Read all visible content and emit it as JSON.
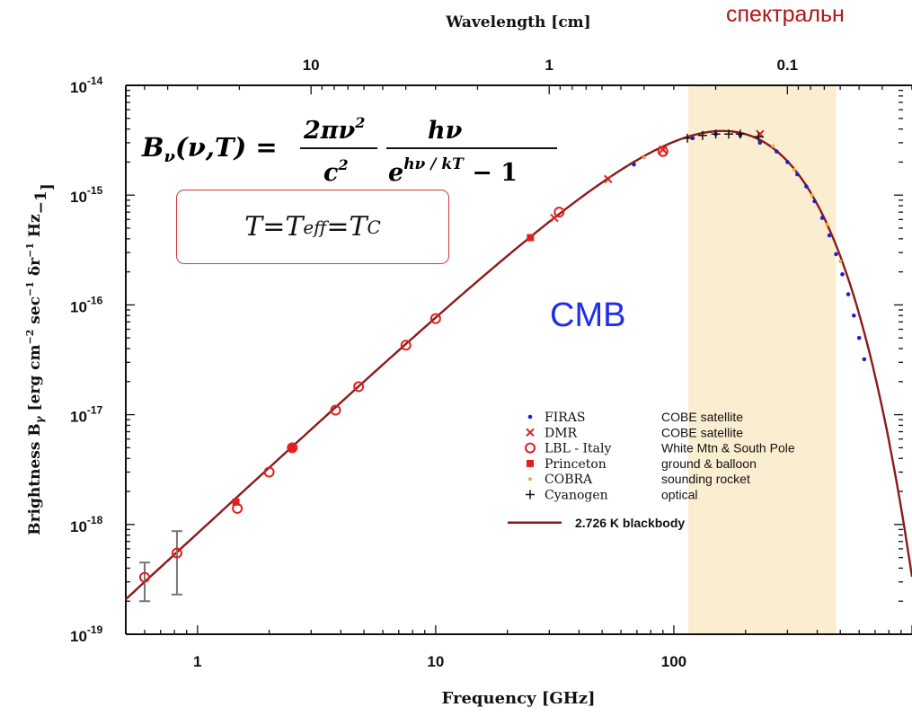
{
  "chart_data": {
    "type": "scatter",
    "x_scale": "log",
    "y_scale": "log",
    "xlabel": "Frequency  [GHz]",
    "ylabel": "Brightness B",
    "ylabel_subscript": "γ",
    "ylabel_units": "[erg cm",
    "ylabel_units_rest": [
      "−2",
      " sec",
      "−1",
      " δr",
      "−1",
      " Hz",
      "−1",
      "]"
    ],
    "top_axis_label": "Wavelength  [cm]",
    "xlim": [
      0.5,
      1000
    ],
    "ylim": [
      1e-19,
      1e-14
    ],
    "x_ticks": [
      {
        "value": 1,
        "label": "1"
      },
      {
        "value": 10,
        "label": "10"
      },
      {
        "value": 100,
        "label": "100"
      }
    ],
    "top_ticks": [
      {
        "value_cm": 10,
        "label": "10"
      },
      {
        "value_cm": 1,
        "label": "1"
      },
      {
        "value_cm": 0.1,
        "label": "0.1"
      }
    ],
    "y_ticks": [
      {
        "value": 1e-14,
        "base": "10",
        "exp": "-14"
      },
      {
        "value": 1e-15,
        "base": "10",
        "exp": "-15"
      },
      {
        "value": 1e-16,
        "base": "10",
        "exp": "-16"
      },
      {
        "value": 1e-17,
        "base": "10",
        "exp": "-17"
      },
      {
        "value": 1e-18,
        "base": "10",
        "exp": "-18"
      },
      {
        "value": 1e-19,
        "base": "10",
        "exp": "-19"
      }
    ],
    "highlight_band_ghz": [
      115,
      480
    ],
    "blackbody": {
      "temperature_K": 2.726,
      "label": "2.726 K  blackbody",
      "color": "#8b1a1a"
    },
    "series": [
      {
        "name": "FIRAS",
        "description": "COBE satellite",
        "marker": "dot",
        "color": "#2020d0",
        "x": [
          68,
          120,
          150,
          190,
          230,
          270,
          300,
          330,
          360,
          390,
          420,
          450,
          480,
          510,
          540,
          570,
          600,
          630
        ],
        "y": [
          1.9e-15,
          3.3e-15,
          3.6e-15,
          3.5e-15,
          3e-15,
          2.5e-15,
          2e-15,
          1.55e-15,
          1.2e-15,
          8.8e-16,
          6.2e-16,
          4.3e-16,
          2.9e-16,
          1.9e-16,
          1.25e-16,
          8e-17,
          5e-17,
          3.2e-17
        ]
      },
      {
        "name": "DMR",
        "description": "COBE satellite",
        "marker": "x",
        "color": "#e02020",
        "x": [
          31.5,
          53,
          90,
          230
        ],
        "y": [
          6.2e-16,
          1.4e-15,
          2.6e-15,
          3.6e-15
        ]
      },
      {
        "name": "LBL - Italy",
        "description": "White Mtn & South Pole",
        "marker": "circle",
        "color": "#e02020",
        "x": [
          0.6,
          0.82,
          1.47,
          2.0,
          2.5,
          3.8,
          4.75,
          7.5,
          10.0,
          33.0,
          90.0
        ],
        "y": [
          3.3e-19,
          5.5e-19,
          1.4e-18,
          3e-18,
          5e-18,
          1.1e-17,
          1.8e-17,
          4.3e-17,
          7.5e-17,
          7e-16,
          2.5e-15
        ],
        "err_low": [
          2e-19,
          2.3e-19,
          null,
          null,
          null,
          null,
          null,
          null,
          null,
          null,
          null
        ],
        "err_high": [
          4.5e-19,
          8.7e-19,
          null,
          null,
          null,
          null,
          null,
          null,
          null,
          null,
          null
        ]
      },
      {
        "name": "Princeton",
        "description": "ground & balloon",
        "marker": "square",
        "color": "#e02020",
        "x": [
          1.45,
          2.5,
          25
        ],
        "y": [
          1.6e-18,
          5e-18,
          4.1e-16
        ]
      },
      {
        "name": "COBRA",
        "description": "sounding rocket",
        "marker": "smalldot",
        "color": "#f2a640",
        "x": [
          75,
          260,
          320,
          380,
          440,
          500
        ],
        "y": [
          2.2e-15,
          2.8e-15,
          1.7e-15,
          1e-15,
          5.4e-16,
          2.5e-16
        ]
      },
      {
        "name": "Cyanogen",
        "description": "optical",
        "marker": "plus",
        "color": "#111111",
        "x": [
          114,
          132,
          150,
          170,
          190,
          227
        ],
        "y": [
          3.3e-15,
          3.5e-15,
          3.6e-15,
          3.6e-15,
          3.6e-15,
          3.4e-15
        ]
      }
    ]
  },
  "annotations": {
    "formula_lhs": "B",
    "formula_lhs_sub": "ν",
    "formula_lhs_args": "(ν,T) =",
    "formula_frac1_num_a": "2πν",
    "formula_frac1_num_sup": "2",
    "formula_frac1_den_a": "c",
    "formula_frac1_den_sup": "2",
    "formula_frac2_num": "hν",
    "formula_frac2_den_a": "e",
    "formula_frac2_den_sup": "hν / kT",
    "formula_frac2_den_b": " − 1",
    "temperature_T": "T",
    "temperature_eq": " = ",
    "temperature_Teff": "T",
    "temperature_Teff_sub": "eff",
    "temperature_TC": "T",
    "temperature_TC_sub": "C",
    "cmb": "CMB",
    "russian_text": "спектральн"
  },
  "colors": {
    "band": "#fbedd0",
    "curve": "#8b1a1a",
    "axis": "#111111",
    "box_border": "#d23a3a",
    "cmb_text": "#1f2ee8",
    "russian_text": "#b01515"
  }
}
